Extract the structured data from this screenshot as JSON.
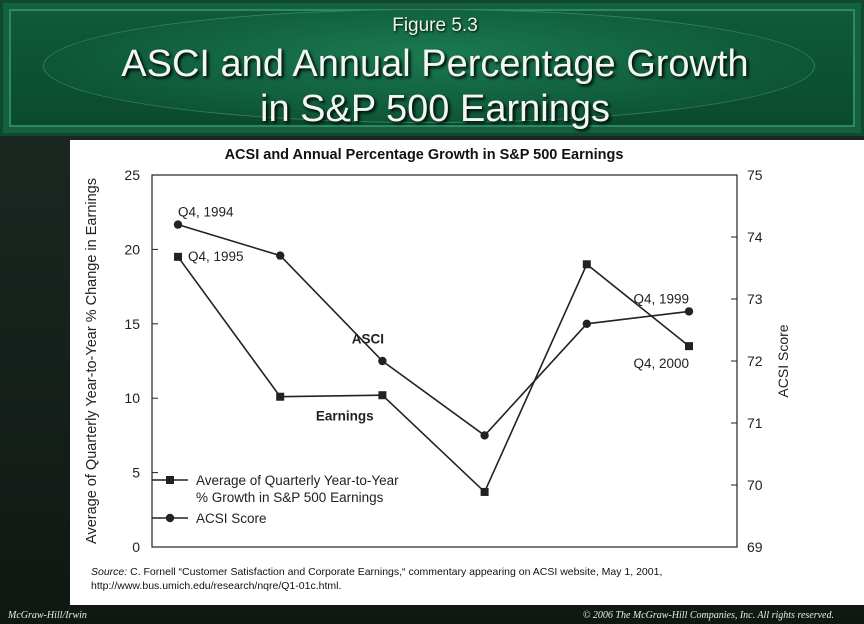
{
  "header": {
    "figure_label": "Figure 5.3",
    "title_line1": "ASCI and Annual Percentage Growth",
    "title_line2": "in S&P 500 Earnings"
  },
  "footer": {
    "left": "McGraw-Hill/Irwin",
    "right": "© 2006 The McGraw-Hill Companies, Inc. All rights reserved."
  },
  "source": {
    "label": "Source:",
    "text": " C. Fornell “Customer Satisfaction and Corporate Earnings,“ commentary appearing on ACSI website, May 1, 2001, http://www.bus.umich.edu/research/nqre/Q1-01c.html."
  },
  "colors": {
    "header_bg": "#14603f",
    "slide_bg": "#1a241f",
    "series": "#222222"
  },
  "chart_data": {
    "type": "line",
    "title": "ACSI and Annual Percentage Growth in S&P 500 Earnings",
    "ylabel": "Average of Quarterly Year-to-Year % Change in Earnings",
    "y2label": "ACSI Score",
    "ylim": [
      0,
      25
    ],
    "y2lim": [
      69,
      75
    ],
    "yticks": [
      "0",
      "5",
      "10",
      "15",
      "20",
      "25"
    ],
    "y2ticks": [
      "69",
      "70",
      "71",
      "72",
      "73",
      "74",
      "75"
    ],
    "x": [
      0,
      1,
      2,
      3,
      4,
      5
    ],
    "grid": false,
    "legend_position": "bottom-left",
    "series": [
      {
        "name": "Average of Quarterly Year-to-Year % Growth in S&P 500 Earnings",
        "marker": "square",
        "axis": "left",
        "values": [
          19.5,
          10.1,
          10.2,
          3.7,
          19.0,
          13.5
        ]
      },
      {
        "name": "ACSI Score",
        "marker": "circle",
        "axis": "right",
        "values": [
          74.2,
          73.7,
          72.0,
          70.8,
          72.6,
          72.8
        ]
      }
    ],
    "annotations": [
      {
        "text": "Q4, 1994",
        "series": 1,
        "index": 0
      },
      {
        "text": "Q4, 1995",
        "series": 0,
        "index": 0
      },
      {
        "text": "Q4, 1999",
        "series": 1,
        "index": 5
      },
      {
        "text": "Q4, 2000",
        "series": 0,
        "index": 5
      },
      {
        "text": "ASCI",
        "series": 1,
        "index": 1.7
      },
      {
        "text": "Earnings",
        "series": 0,
        "index": 1.3
      }
    ],
    "legend": [
      {
        "line1": "Average of Quarterly Year-to-Year",
        "line2": "% Growth in S&P 500 Earnings"
      },
      {
        "line1": "ACSI Score",
        "line2": ""
      }
    ]
  }
}
